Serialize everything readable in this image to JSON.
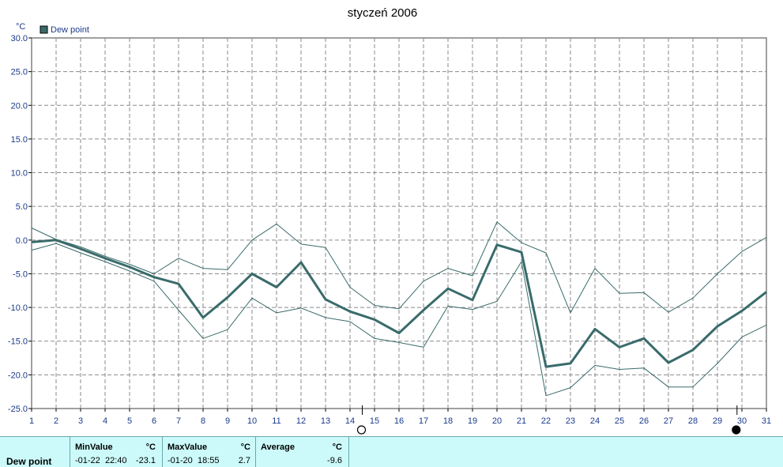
{
  "chart_data": {
    "type": "line",
    "title": "styczeń 2006",
    "yunit": "°C",
    "xlabel": "",
    "ylabel": "",
    "ylim": [
      -25,
      30
    ],
    "yticks": [
      "30.0",
      "25.0",
      "20.0",
      "15.0",
      "10.0",
      "5.0",
      "0.0",
      "-5.0",
      "-10.0",
      "-15.0",
      "-20.0",
      "-25.0"
    ],
    "xlim": [
      1,
      31
    ],
    "x": [
      1,
      2,
      3,
      4,
      5,
      6,
      7,
      8,
      9,
      10,
      11,
      12,
      13,
      14,
      15,
      16,
      17,
      18,
      19,
      20,
      21,
      22,
      23,
      24,
      25,
      26,
      27,
      28,
      29,
      30,
      31
    ],
    "xtick_labels": [
      "1",
      "2",
      "3",
      "4",
      "5",
      "6",
      "7",
      "8",
      "9",
      "10",
      "11",
      "12",
      "13",
      "14",
      "15",
      "16",
      "17",
      "18",
      "19",
      "20",
      "21",
      "22",
      "23",
      "24",
      "25",
      "26",
      "27",
      "28",
      "29",
      "30",
      "31"
    ],
    "grid": true,
    "legend_position": "top-left",
    "series": [
      {
        "name": "Dew point",
        "color": "#3a6b6b",
        "values": [
          -0.3,
          0.0,
          -1.3,
          -2.7,
          -4.0,
          -5.5,
          -6.5,
          -11.5,
          -8.5,
          -5.0,
          -7.0,
          -3.3,
          -8.8,
          -10.6,
          -11.8,
          -13.8,
          -10.4,
          -7.2,
          -8.9,
          -0.7,
          -1.8,
          -18.8,
          -18.3,
          -13.2,
          -15.9,
          -14.6,
          -18.2,
          -16.3,
          -12.8,
          -10.5,
          -7.7
        ]
      },
      {
        "role": "daily maximum",
        "color": "#3a6b6b",
        "values": [
          1.8,
          0.1,
          -1.0,
          -2.4,
          -3.6,
          -5.0,
          -2.7,
          -4.2,
          -4.4,
          0.0,
          2.4,
          -0.6,
          -1.1,
          -7.0,
          -9.7,
          -10.2,
          -6.1,
          -4.2,
          -5.3,
          2.7,
          -0.4,
          -1.9,
          -10.8,
          -4.2,
          -7.9,
          -7.8,
          -10.7,
          -8.6,
          -5.0,
          -1.7,
          0.4
        ]
      },
      {
        "role": "daily minimum",
        "color": "#3a6b6b",
        "values": [
          -1.5,
          -0.5,
          -1.9,
          -3.2,
          -4.6,
          -6.1,
          -10.4,
          -14.6,
          -13.3,
          -8.6,
          -10.8,
          -10.1,
          -11.5,
          -12.1,
          -14.6,
          -15.2,
          -15.9,
          -9.8,
          -10.3,
          -9.1,
          -3.2,
          -23.1,
          -21.9,
          -18.6,
          -19.2,
          -19.0,
          -21.8,
          -21.8,
          -18.3,
          -14.4,
          -12.6
        ]
      }
    ],
    "markers": [
      {
        "x": 14.5,
        "symbol": "open-circle"
      },
      {
        "x": 29.8,
        "symbol": "filled-circle"
      }
    ]
  },
  "stats": {
    "row_label": "Dew point",
    "min": {
      "header": "MinValue",
      "unit": "°C",
      "date": "-01-22",
      "time": "22:40",
      "value": "-23.1"
    },
    "max": {
      "header": "MaxValue",
      "unit": "°C",
      "date": "-01-20",
      "time": "18:55",
      "value": "2.7"
    },
    "avg": {
      "header": "Average",
      "unit": "°C",
      "value": "-9.6"
    }
  }
}
